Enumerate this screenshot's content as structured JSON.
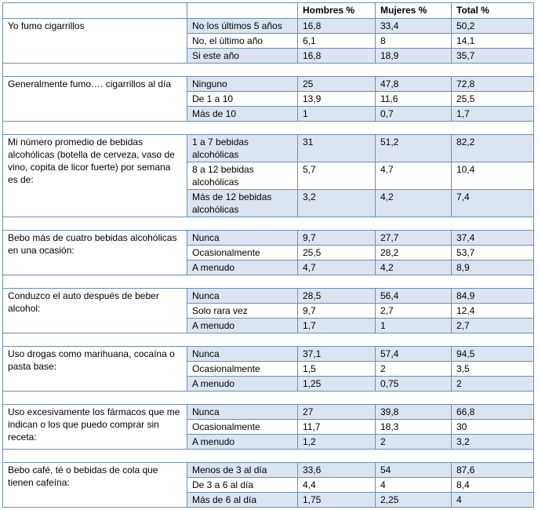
{
  "header": {
    "question": "",
    "option": "",
    "hombres": "Hombres %",
    "mujeres": "Mujeres %",
    "total": "Total %"
  },
  "groups": [
    {
      "question": "Yo fumo cigarrillos",
      "rows": [
        {
          "option": "No los últimos 5 años",
          "hombres": "16,8",
          "mujeres": "33,4",
          "total": "50,2"
        },
        {
          "option": "No, el último año",
          "hombres": "6,1",
          "mujeres": "8",
          "total": "14,1"
        },
        {
          "option": "Si este año",
          "hombres": "16,8",
          "mujeres": "18,9",
          "total": "35,7"
        }
      ]
    },
    {
      "question": "Generalmente fumo…. cigarrillos al día",
      "rows": [
        {
          "option": "Ninguno",
          "hombres": "25",
          "mujeres": "47,8",
          "total": "72,8"
        },
        {
          "option": "De 1 a 10",
          "hombres": "13,9",
          "mujeres": "11,6",
          "total": "25,5"
        },
        {
          "option": "Más de 10",
          "hombres": "1",
          "mujeres": "0,7",
          "total": "1,7"
        }
      ]
    },
    {
      "question": "Mi número promedio de bebidas alcohólicas (botella de cerveza, vaso de vino, copita de licor fuerte) por semana es de:",
      "rows": [
        {
          "option": "1 a 7 bebidas alcohólicas",
          "hombres": "31",
          "mujeres": "51,2",
          "total": "82,2"
        },
        {
          "option": "8 a 12 bebidas alcohólicas",
          "hombres": "5,7",
          "mujeres": "4,7",
          "total": "10,4"
        },
        {
          "option": "Más de 12 bebidas alcohólicas",
          "hombres": "3,2",
          "mujeres": "4,2",
          "total": "7,4"
        }
      ]
    },
    {
      "question": "Bebo más de cuatro bebidas alcohólicas en una ocasión:",
      "rows": [
        {
          "option": "Nunca",
          "hombres": "9,7",
          "mujeres": "27,7",
          "total": "37,4"
        },
        {
          "option": "Ocasionalmente",
          "hombres": "25,5",
          "mujeres": "28,2",
          "total": "53,7"
        },
        {
          "option": "A menudo",
          "hombres": "4,7",
          "mujeres": "4,2",
          "total": "8,9"
        }
      ]
    },
    {
      "question": "Conduzco el auto después de beber alcohol:",
      "rows": [
        {
          "option": "Nunca",
          "hombres": "28,5",
          "mujeres": "56,4",
          "total": "84,9"
        },
        {
          "option": "Solo rara vez",
          "hombres": "9,7",
          "mujeres": "2,7",
          "total": "12,4"
        },
        {
          "option": "A menudo",
          "hombres": "1,7",
          "mujeres": "1",
          "total": "2,7"
        }
      ]
    },
    {
      "question": "Uso drogas como marihuana, cocaína o pasta base:",
      "rows": [
        {
          "option": "Nunca",
          "hombres": "37,1",
          "mujeres": "57,4",
          "total": "94,5"
        },
        {
          "option": "Ocasionalmente",
          "hombres": "1,5",
          "mujeres": "2",
          "total": "3,5"
        },
        {
          "option": "A menudo",
          "hombres": "1,25",
          "mujeres": "0,75",
          "total": "2"
        }
      ]
    },
    {
      "question": "Uso excesivamente los fármacos que me indican o los que puedo comprar sin receta:",
      "rows": [
        {
          "option": "Nunca",
          "hombres": "27",
          "mujeres": "39,8",
          "total": "66,8"
        },
        {
          "option": "Ocasionalmente",
          "hombres": "11,7",
          "mujeres": "18,3",
          "total": "30"
        },
        {
          "option": "A menudo",
          "hombres": "1,2",
          "mujeres": "2",
          "total": "3,2"
        }
      ]
    },
    {
      "question": "Bebo café, té o bebidas de cola que tienen cafeína:",
      "rows": [
        {
          "option": "Menos de 3 al día",
          "hombres": "33,6",
          "mujeres": "54",
          "total": "87,6"
        },
        {
          "option": "De 3 a 6 al día",
          "hombres": "4,4",
          "mujeres": "4",
          "total": "8,4"
        },
        {
          "option": "Más de 6 al día",
          "hombres": "1,75",
          "mujeres": "2,25",
          "total": "4"
        }
      ]
    }
  ],
  "colors": {
    "border": "#6b8fb8",
    "band": "#dbe5f1",
    "text": "#000000"
  }
}
